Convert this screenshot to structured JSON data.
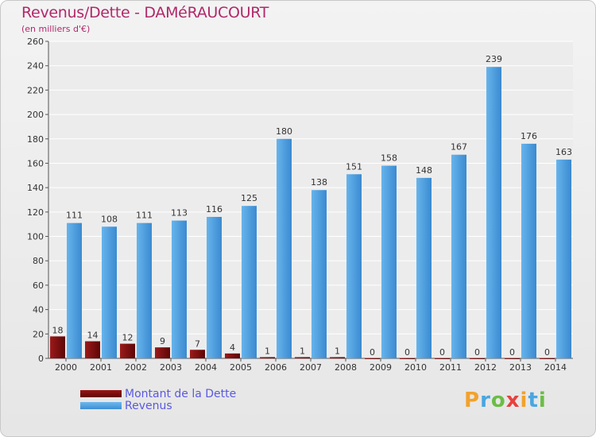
{
  "header": {
    "title": "Revenus/Dette - DAMéRAUCOURT",
    "subtitle": "(en milliers d'€)"
  },
  "legend": {
    "dette_label": "Montant de la Dette",
    "revenus_label": "Revenus"
  },
  "logo": {
    "letters": [
      "P",
      "r",
      "o",
      "x",
      "i",
      "t",
      "i"
    ],
    "colors": [
      "#f2a22b",
      "#4aa6e0",
      "#6bbd45",
      "#e8413c",
      "#f2a22b",
      "#4aa6e0",
      "#6bbd45"
    ]
  },
  "colors": {
    "dette": "#7a0b0b",
    "revenus": "#4aa3e6",
    "title": "#b0296a",
    "legend_text": "#5a5adf"
  },
  "chart_data": {
    "type": "bar",
    "categories": [
      "2000",
      "2001",
      "2002",
      "2003",
      "2004",
      "2005",
      "2006",
      "2007",
      "2008",
      "2009",
      "2010",
      "2011",
      "2012",
      "2013",
      "2014"
    ],
    "series": [
      {
        "name": "Montant de la Dette",
        "values": [
          18,
          14,
          12,
          9,
          7,
          4,
          1,
          1,
          1,
          0,
          0,
          0,
          0,
          0,
          0
        ]
      },
      {
        "name": "Revenus",
        "values": [
          111,
          108,
          111,
          113,
          116,
          125,
          180,
          138,
          151,
          158,
          148,
          167,
          239,
          176,
          163
        ]
      }
    ],
    "title": "Revenus/Dette - DAMéRAUCOURT",
    "ylabel": "(en milliers d'€)",
    "ylim": [
      0,
      260
    ],
    "yticks": [
      0,
      20,
      40,
      60,
      80,
      100,
      120,
      140,
      160,
      180,
      200,
      220,
      240,
      260
    ],
    "grid": true,
    "legend_position": "bottom-left"
  }
}
